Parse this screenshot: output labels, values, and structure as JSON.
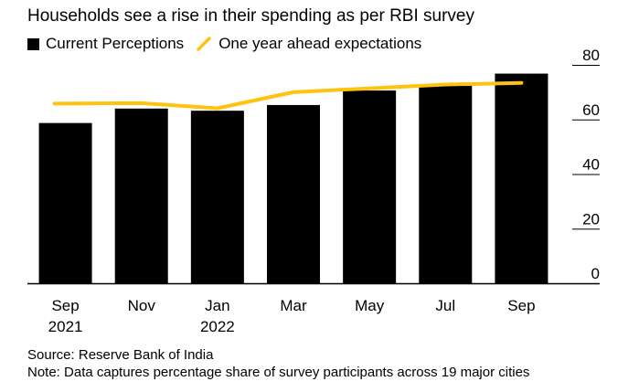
{
  "title": "Households see a rise in their spending as per RBI survey",
  "legend": {
    "bars_label": "Current Perceptions",
    "line_label": "One year ahead expectations"
  },
  "colors": {
    "bars": "#000000",
    "line": "#FFC20E",
    "axis": "#000000"
  },
  "chart_data": {
    "type": "bar",
    "title": "Households see a rise in their spending as per RBI survey",
    "categories": [
      "Sep 2021",
      "Nov",
      "Jan 2022",
      "Mar",
      "May",
      "Jul",
      "Sep"
    ],
    "x_tick_lines": [
      [
        "Sep",
        "2021"
      ],
      [
        "Nov"
      ],
      [
        "Jan",
        "2022"
      ],
      [
        "Mar"
      ],
      [
        "May"
      ],
      [
        "Jul"
      ],
      [
        "Sep"
      ]
    ],
    "series": [
      {
        "name": "Current Perceptions",
        "kind": "bar",
        "values": [
          58.7,
          64.0,
          63.2,
          65.3,
          70.6,
          72.7,
          76.8
        ]
      },
      {
        "name": "One year ahead expectations",
        "kind": "line",
        "values": [
          65.8,
          66.0,
          64.1,
          70.0,
          71.4,
          72.8,
          73.4
        ]
      }
    ],
    "y_ticks": [
      0,
      20,
      40,
      60,
      80
    ],
    "ylim": [
      0,
      80
    ],
    "y_axis_side": "right",
    "xlabel": "",
    "ylabel": ""
  },
  "source": "Source: Reserve Bank of India",
  "note": "Note: Data captures percentage share of survey participants across 19 major cities"
}
